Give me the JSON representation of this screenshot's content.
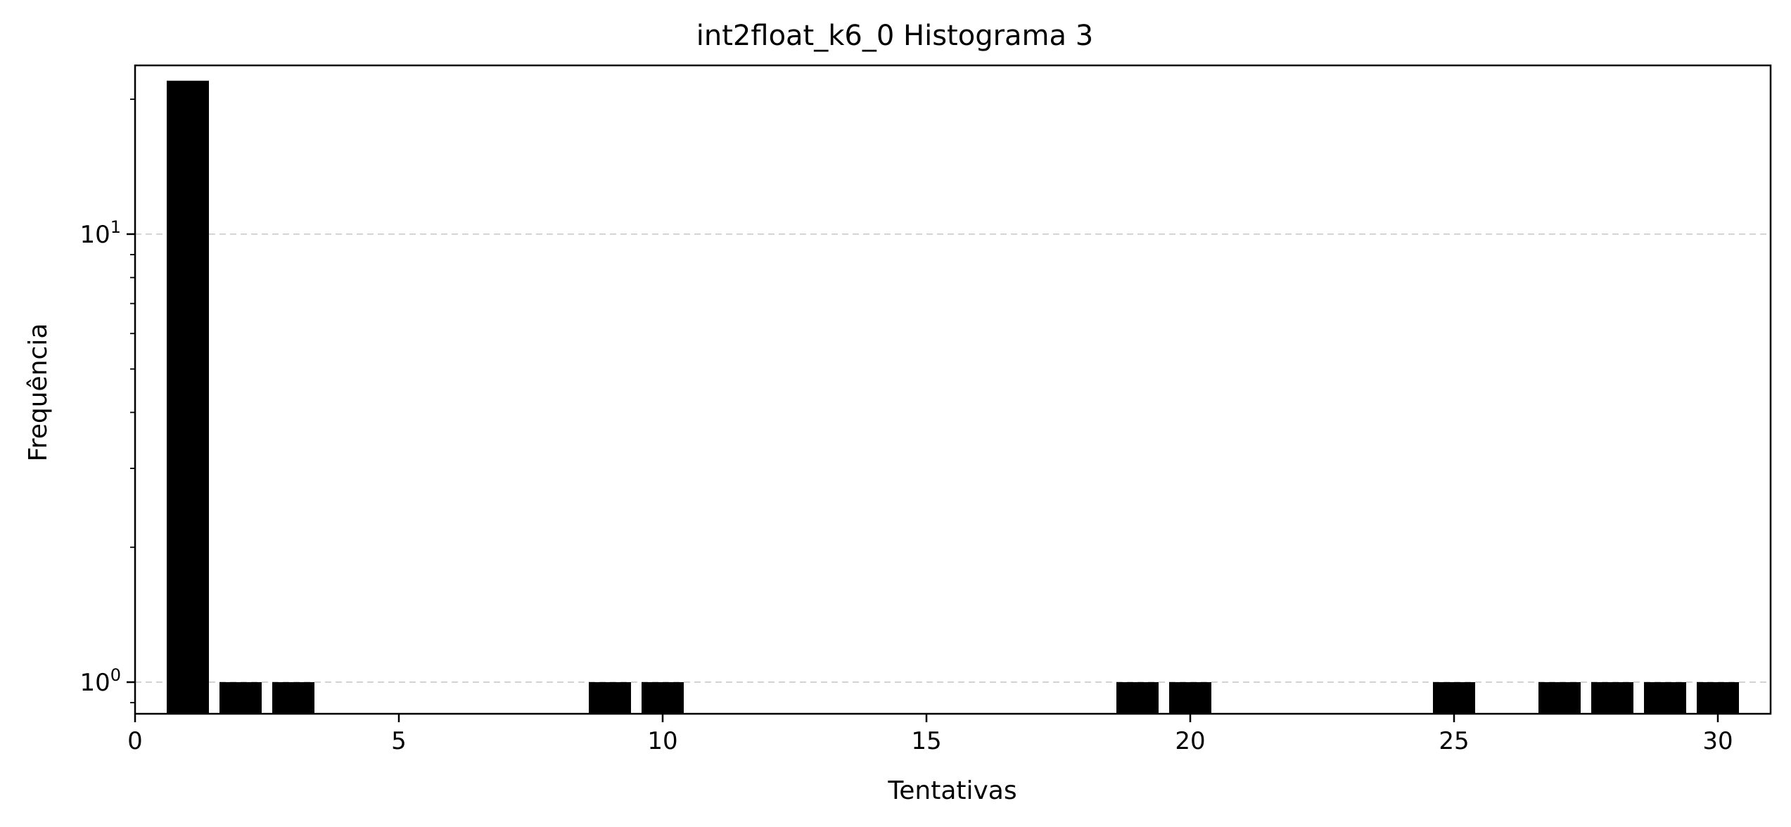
{
  "chart_data": {
    "type": "bar",
    "title": "int2float_k6_0 Histograma 3",
    "xlabel": "Tentativas",
    "ylabel": "Frequência",
    "y_scale": "log",
    "xlim": [
      0,
      31
    ],
    "ylim": [
      0.85,
      23.8
    ],
    "x_ticks": [
      {
        "value": 0,
        "label": "0"
      },
      {
        "value": 5,
        "label": "5"
      },
      {
        "value": 10,
        "label": "10"
      },
      {
        "value": 15,
        "label": "15"
      },
      {
        "value": 20,
        "label": "20"
      },
      {
        "value": 25,
        "label": "25"
      },
      {
        "value": 30,
        "label": "30"
      }
    ],
    "y_ticks": [
      {
        "value": 1,
        "base": "10",
        "exp": "0"
      },
      {
        "value": 10,
        "base": "10",
        "exp": "1"
      }
    ],
    "x": [
      1,
      2,
      3,
      9,
      10,
      19,
      20,
      25,
      27,
      28,
      29,
      30
    ],
    "values": [
      22,
      1,
      1,
      1,
      1,
      1,
      1,
      1,
      1,
      1,
      1,
      1
    ],
    "bar_color": "#000000",
    "grid": "y-major-dashed",
    "grid_color": "#d3d3d3"
  }
}
